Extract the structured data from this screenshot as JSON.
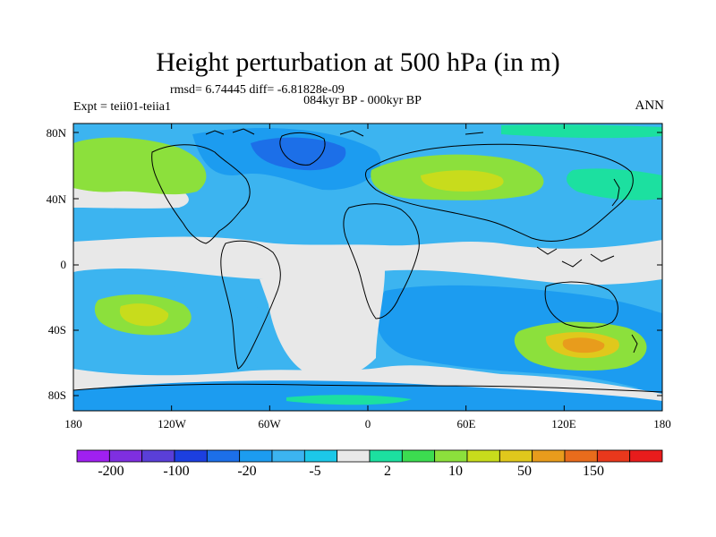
{
  "title": "Height perturbation at 500 hPa (in m)",
  "stats": "rmsd= 6.74445 diff= -6.81828e-09",
  "period": "084kyr BP - 000kyr BP",
  "experiment": "Expt = teii01-teiia1",
  "season": "ANN",
  "axes": {
    "lon_ticks": [
      "180",
      "120W",
      "60W",
      "0",
      "60E",
      "120E",
      "180"
    ],
    "lat_ticks": [
      "80N",
      "40N",
      "0",
      "40S",
      "80S"
    ]
  },
  "colorbar": {
    "labels": [
      "-200",
      "-100",
      "-20",
      "-5",
      "2",
      "10",
      "50",
      "150"
    ],
    "colors": [
      "#a020f0",
      "#7f2fe0",
      "#5a3fd8",
      "#1c3fe0",
      "#1c6fe8",
      "#1c9cf0",
      "#3cb4f0",
      "#1cc8e8",
      "#e8e8e8",
      "#1ce0a0",
      "#3cdc50",
      "#8ce03c",
      "#c8dc1c",
      "#e0c81c",
      "#e89c1c",
      "#e86c1c",
      "#e8381c",
      "#e81c1c"
    ]
  },
  "palette": {
    "neutral": "#e8e8e8",
    "ltblue": "#1cc8e8",
    "midblue": "#3cb4f0",
    "blue": "#1c9cf0",
    "deepblue": "#1c6fe8",
    "green": "#1ce0a0",
    "ltgreen": "#8ce03c",
    "yellowgreen": "#c8dc1c",
    "yellow": "#e0c81c",
    "orange": "#e89c1c",
    "coastline": "#000000"
  }
}
